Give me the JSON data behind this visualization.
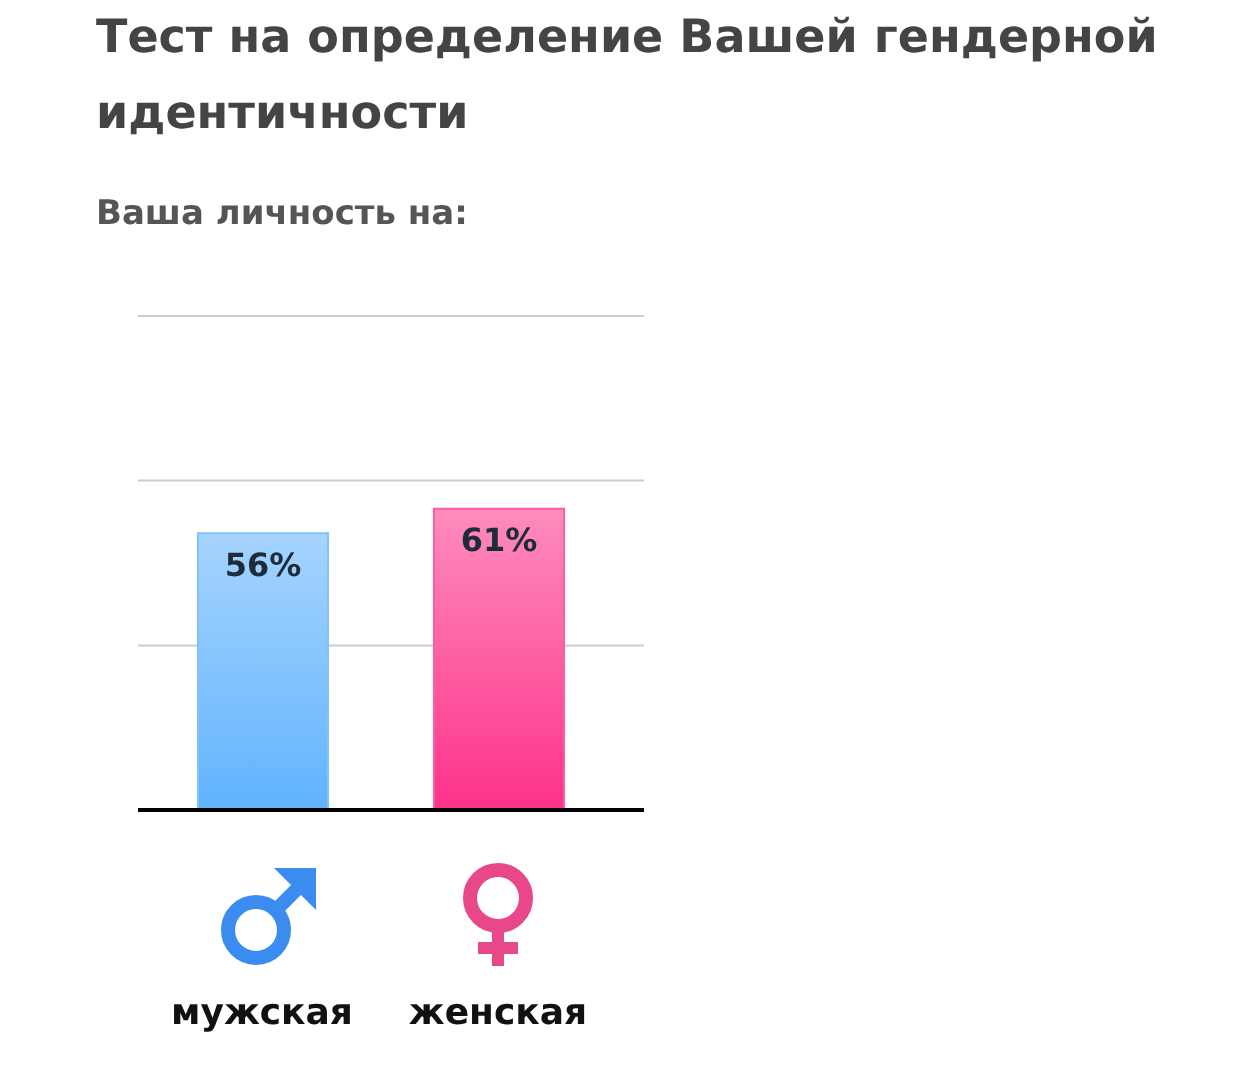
{
  "chart_data": {
    "type": "bar",
    "title": "Тест на определение Вашей гендерной идентичности",
    "subtitle": "Ваша личность на:",
    "categories": [
      "мужская",
      "женская"
    ],
    "values": [
      56,
      61
    ],
    "colors": [
      "#80c2fd",
      "#fe5ba1"
    ],
    "value_labels": [
      "56%",
      "61%"
    ],
    "ylim": [
      0,
      100
    ],
    "yticks": [
      {
        "value": 0,
        "label": null
      },
      {
        "value": 33.3,
        "label": null
      },
      {
        "value": 66.7,
        "label": null
      },
      {
        "value": 100,
        "label": null
      }
    ],
    "grid": "y",
    "tick_labels": "x"
  }
}
